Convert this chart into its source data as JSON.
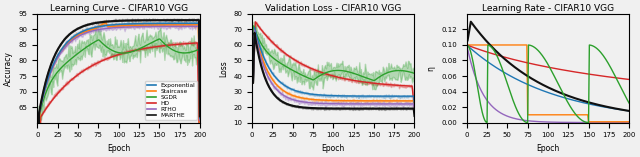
{
  "titles": [
    "Learning Curve - CIFAR10 VGG",
    "Validation Loss - CIFAR10 VGG",
    "Learning Rate - CIFAR10 VGG"
  ],
  "xlabels": [
    "Epoch",
    "Epoch",
    "Epoch"
  ],
  "ylabels": [
    "Accuracy",
    "Loss",
    "η"
  ],
  "epochs": 200,
  "colors": {
    "Exponential": "#1f77b4",
    "Staircase": "#ff7f0e",
    "SGDR": "#2ca02c",
    "HD": "#d62728",
    "RTHO": "#9467bd",
    "MARTHE": "#111111"
  },
  "legend_labels": [
    "Exponential",
    "Staircase",
    "SGDR",
    "HD",
    "RTHO",
    "MARTHE"
  ],
  "acc_ylim": [
    60,
    95
  ],
  "loss_ylim": [
    10,
    80
  ],
  "lr_ylim": [
    0,
    0.14
  ],
  "acc_yticks": [
    65,
    70,
    75,
    80,
    85,
    90,
    95
  ],
  "loss_yticks": [
    10,
    20,
    30,
    40,
    50,
    60,
    70,
    80
  ],
  "lr_yticks": [
    0.0,
    0.02,
    0.04,
    0.06,
    0.08,
    0.1,
    0.12
  ],
  "xticks": [
    0,
    25,
    50,
    75,
    100,
    125,
    150,
    175,
    200
  ],
  "figsize": [
    6.4,
    1.57
  ],
  "dpi": 100,
  "bg_color": "#f0f0f0"
}
